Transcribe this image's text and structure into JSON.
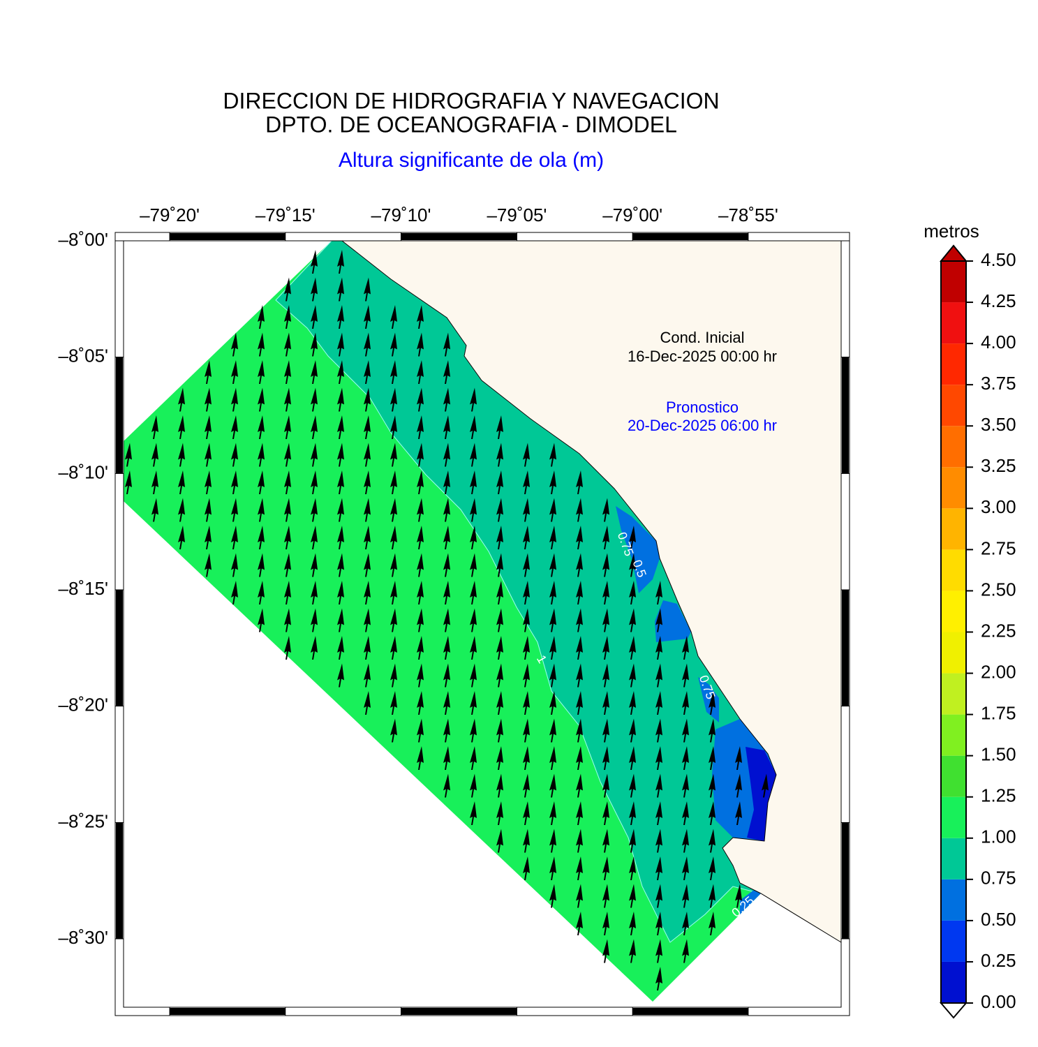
{
  "map": {
    "title": [
      "DIRECCION DE HIDROGRAFIA Y NAVEGACION",
      "DPTO. DE OCEANOGRAFIA - DIMODEL"
    ],
    "subtitle": "Altura significante de ola (m)",
    "xlim": [
      -79.3665,
      -78.8498
    ],
    "ylim": [
      -8.0,
      -8.549
    ],
    "xticks": [
      {
        "value": -79.3333,
        "label": "–79˚20'"
      },
      {
        "value": -79.25,
        "label": "–79˚15'"
      },
      {
        "value": -79.1667,
        "label": "–79˚10'"
      },
      {
        "value": -79.0833,
        "label": "–79˚05'"
      },
      {
        "value": -79.0,
        "label": "–79˚00'"
      },
      {
        "value": -78.9167,
        "label": "–78˚55'"
      }
    ],
    "yticks": [
      {
        "value": -8.0,
        "label": "–8˚00'"
      },
      {
        "value": -8.0833,
        "label": "–8˚05'"
      },
      {
        "value": -8.1667,
        "label": "–8˚10'"
      },
      {
        "value": -8.25,
        "label": "–8˚15'"
      },
      {
        "value": -8.3333,
        "label": "–8˚20'"
      },
      {
        "value": -8.4167,
        "label": "–8˚25'"
      },
      {
        "value": -8.5,
        "label": "–8˚30'"
      }
    ],
    "annotations": {
      "initial": [
        "Cond. Inicial",
        "16-Dec-2025 00:00 hr"
      ],
      "forecast": [
        "Pronostico",
        "20-Dec-2025 06:00 hr"
      ]
    },
    "contour_labels": [
      "0.75",
      "0.5",
      "0.75",
      "1",
      "0.25"
    ],
    "colorbar": {
      "label": "metros",
      "lim": [
        0,
        4.5
      ],
      "ticks": [
        {
          "value": 0,
          "label": "0.00"
        },
        {
          "value": 0.25,
          "label": "0.25"
        },
        {
          "value": 0.5,
          "label": "0.50"
        },
        {
          "value": 0.75,
          "label": "0.75"
        },
        {
          "value": 1,
          "label": "1.00"
        },
        {
          "value": 1.25,
          "label": "1.25"
        },
        {
          "value": 1.5,
          "label": "1.50"
        },
        {
          "value": 1.75,
          "label": "1.75"
        },
        {
          "value": 2,
          "label": "2.00"
        },
        {
          "value": 2.25,
          "label": "2.25"
        },
        {
          "value": 2.5,
          "label": "2.50"
        },
        {
          "value": 2.75,
          "label": "2.75"
        },
        {
          "value": 3,
          "label": "3.00"
        },
        {
          "value": 3.25,
          "label": "3.25"
        },
        {
          "value": 3.5,
          "label": "3.50"
        },
        {
          "value": 3.75,
          "label": "3.75"
        },
        {
          "value": 4,
          "label": "4.00"
        },
        {
          "value": 4.25,
          "label": "4.25"
        },
        {
          "value": 4.5,
          "label": "4.50"
        }
      ],
      "colors": [
        "#0010d0",
        "#0038f0",
        "#0070e0",
        "#00c896",
        "#18f05a",
        "#40e030",
        "#80f020",
        "#c0f020",
        "#f0f000",
        "#fff000",
        "#ffdc00",
        "#ffb400",
        "#ff8c00",
        "#ff6e00",
        "#ff4800",
        "#ff2800",
        "#f01010",
        "#c00000"
      ]
    }
  }
}
